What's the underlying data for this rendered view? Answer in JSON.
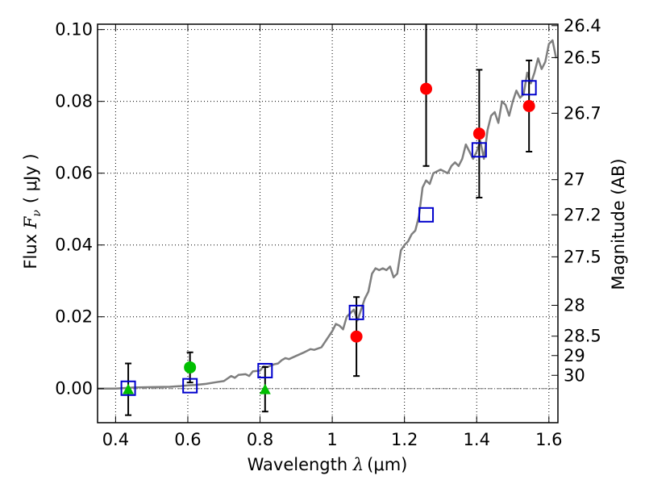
{
  "chart_data": {
    "type": "scatter",
    "xlabel": "Wavelength  λ (μm)",
    "xlabel_parts": {
      "text": "Wavelength  ",
      "symbol": "λ",
      "unit": "(μm)"
    },
    "ylabel": "Flux  Fν  ( μJy )",
    "ylabel_parts": {
      "text": "Flux  ",
      "symbol": "F",
      "subscript": "ν",
      "unit": "( μJy )"
    },
    "y2label": "Magnitude (AB)",
    "xlim": [
      0.35,
      1.625
    ],
    "ylim": [
      -0.0095,
      0.1015
    ],
    "xticks": [
      0.4,
      0.6,
      0.8,
      1.0,
      1.2,
      1.4,
      1.6
    ],
    "xtick_labels": [
      "0.4",
      "0.6",
      "0.8",
      "1",
      "1.2",
      "1.4",
      "1.6"
    ],
    "yticks": [
      0.0,
      0.02,
      0.04,
      0.06,
      0.08,
      0.1
    ],
    "ytick_labels": [
      "0.00",
      "0.02",
      "0.04",
      "0.06",
      "0.08",
      "0.10"
    ],
    "y2ticks": [
      {
        "label": "26.4",
        "flux": 0.1011
      },
      {
        "label": "26.5",
        "flux": 0.0922
      },
      {
        "label": "26.7",
        "flux": 0.0767
      },
      {
        "label": "27",
        "flux": 0.0582
      },
      {
        "label": "27.2",
        "flux": 0.0484
      },
      {
        "label": "27.5",
        "flux": 0.0367
      },
      {
        "label": "28",
        "flux": 0.0232
      },
      {
        "label": "28.5",
        "flux": 0.0146
      },
      {
        "label": "29",
        "flux": 0.0092
      },
      {
        "label": "30",
        "flux": 0.0037
      }
    ],
    "grid": true,
    "colors": {
      "model": "#7f7f7f",
      "red": "#ff0000",
      "green": "#00bf00",
      "blue": "#0000cc",
      "errorbar": "#000000"
    },
    "model_spectrum": {
      "x": [
        0.35,
        0.4,
        0.45,
        0.5,
        0.55,
        0.58,
        0.6,
        0.62,
        0.65,
        0.68,
        0.7,
        0.72,
        0.73,
        0.74,
        0.76,
        0.77,
        0.78,
        0.8,
        0.81,
        0.82,
        0.84,
        0.85,
        0.86,
        0.87,
        0.88,
        0.9,
        0.92,
        0.94,
        0.95,
        0.97,
        0.98,
        1.0,
        1.01,
        1.02,
        1.03,
        1.04,
        1.05,
        1.06,
        1.07,
        1.08,
        1.09,
        1.1,
        1.11,
        1.12,
        1.13,
        1.14,
        1.15,
        1.16,
        1.17,
        1.18,
        1.19,
        1.2,
        1.21,
        1.22,
        1.23,
        1.24,
        1.25,
        1.26,
        1.27,
        1.28,
        1.3,
        1.32,
        1.33,
        1.34,
        1.35,
        1.36,
        1.37,
        1.38,
        1.39,
        1.4,
        1.41,
        1.42,
        1.43,
        1.44,
        1.45,
        1.46,
        1.47,
        1.48,
        1.49,
        1.5,
        1.51,
        1.52,
        1.53,
        1.54,
        1.55,
        1.56,
        1.57,
        1.58,
        1.59,
        1.6,
        1.61,
        1.62
      ],
      "y": [
        0.0,
        0.0,
        0.0003,
        0.0004,
        0.0005,
        0.0007,
        0.0009,
        0.001,
        0.0013,
        0.0018,
        0.0021,
        0.0035,
        0.003,
        0.0038,
        0.004,
        0.0035,
        0.0048,
        0.005,
        0.0062,
        0.006,
        0.0068,
        0.007,
        0.0079,
        0.0085,
        0.0082,
        0.0091,
        0.01,
        0.011,
        0.0108,
        0.0115,
        0.013,
        0.016,
        0.018,
        0.0175,
        0.0165,
        0.02,
        0.021,
        0.022,
        0.019,
        0.022,
        0.025,
        0.027,
        0.032,
        0.0335,
        0.033,
        0.0335,
        0.033,
        0.034,
        0.031,
        0.032,
        0.0385,
        0.04,
        0.041,
        0.043,
        0.044,
        0.048,
        0.056,
        0.058,
        0.057,
        0.06,
        0.061,
        0.06,
        0.062,
        0.063,
        0.062,
        0.064,
        0.068,
        0.066,
        0.064,
        0.066,
        0.069,
        0.064,
        0.072,
        0.076,
        0.077,
        0.074,
        0.08,
        0.079,
        0.076,
        0.08,
        0.083,
        0.081,
        0.082,
        0.088,
        0.085,
        0.088,
        0.092,
        0.089,
        0.091,
        0.096,
        0.097,
        0.092
      ]
    },
    "series": [
      {
        "marker": "circle",
        "color": "#ff0000",
        "points": [
          {
            "x": 1.067,
            "y": 0.0145,
            "err_low": 0.011,
            "err_high": 0.011
          },
          {
            "x": 1.26,
            "y": 0.0835,
            "err_low": 0.0215,
            "err_high": 0.0215
          },
          {
            "x": 1.407,
            "y": 0.071,
            "err_low": 0.0178,
            "err_high": 0.0178
          },
          {
            "x": 1.545,
            "y": 0.0787,
            "err_low": 0.0127,
            "err_high": 0.0127
          }
        ]
      },
      {
        "marker": "circle",
        "color": "#00bf00",
        "points": [
          {
            "x": 0.606,
            "y": 0.0059,
            "err_low": 0.0042,
            "err_high": 0.0042
          }
        ]
      },
      {
        "marker": "triangle",
        "color": "#00bf00",
        "points": [
          {
            "x": 0.435,
            "y": -0.0002,
            "err_low": 0.0072,
            "err_high": 0.0072
          },
          {
            "x": 0.814,
            "y": -0.0002,
            "err_low": 0.0062,
            "err_high": 0.0062
          }
        ]
      },
      {
        "marker": "square",
        "color": "#0000cc",
        "points": [
          {
            "x": 0.435,
            "y": 0.0001
          },
          {
            "x": 0.606,
            "y": 0.0008
          },
          {
            "x": 0.814,
            "y": 0.005
          },
          {
            "x": 1.067,
            "y": 0.0212
          },
          {
            "x": 1.26,
            "y": 0.0484
          },
          {
            "x": 1.407,
            "y": 0.0665
          },
          {
            "x": 1.545,
            "y": 0.0838
          }
        ]
      }
    ]
  }
}
